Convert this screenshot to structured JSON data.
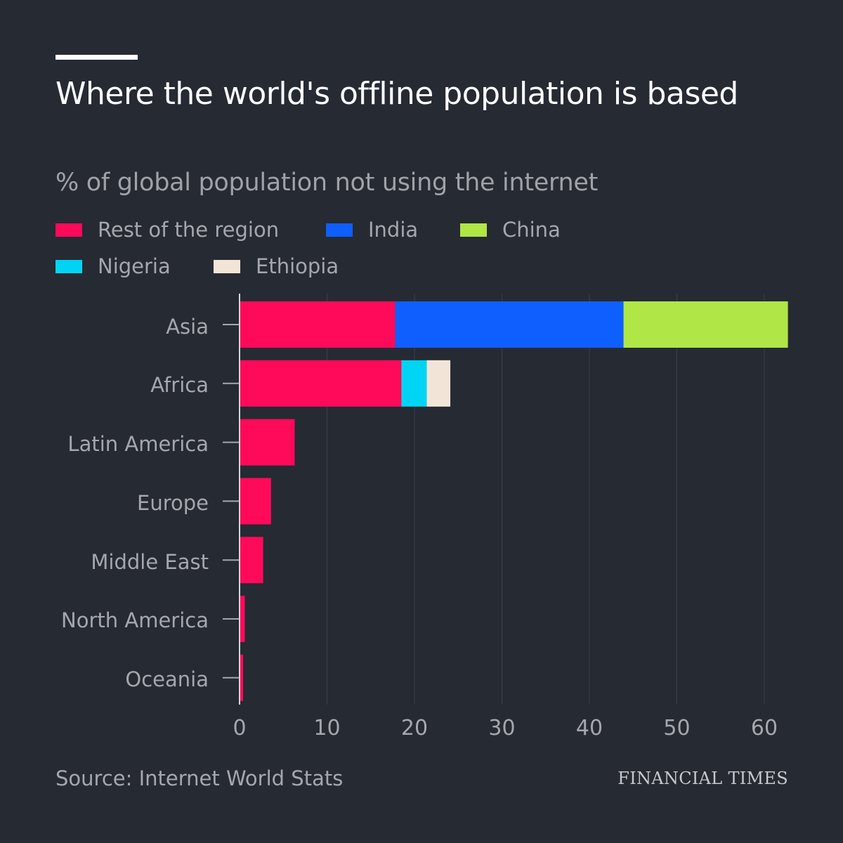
{
  "header": {
    "title": "Where the world's offline population is based",
    "subtitle": "% of global population not using the internet"
  },
  "footer": {
    "source": "Source: Internet World Stats",
    "brand": "FINANCIAL TIMES"
  },
  "colors": {
    "background": "#262a33",
    "rest_of_region": "#ff0a5a",
    "india": "#0f5fff",
    "china": "#b0e645",
    "nigeria": "#00d4f5",
    "ethiopia": "#f2e5d8"
  },
  "chart_data": {
    "type": "bar",
    "orientation": "horizontal",
    "stacked": true,
    "categories": [
      "Asia",
      "Africa",
      "Latin America",
      "Europe",
      "Middle East",
      "North America",
      "Oceania"
    ],
    "series": [
      {
        "name": "Rest of the region",
        "color": "#ff0a5a",
        "values": [
          17.8,
          18.5,
          6.3,
          3.6,
          2.7,
          0.6,
          0.4
        ]
      },
      {
        "name": "India",
        "color": "#0f5fff",
        "values": [
          26.1,
          0,
          0,
          0,
          0,
          0,
          0
        ]
      },
      {
        "name": "China",
        "color": "#b0e645",
        "values": [
          18.8,
          0,
          0,
          0,
          0,
          0,
          0
        ]
      },
      {
        "name": "Nigeria",
        "color": "#00d4f5",
        "values": [
          0,
          2.9,
          0,
          0,
          0,
          0,
          0
        ]
      },
      {
        "name": "Ethiopia",
        "color": "#f2e5d8",
        "values": [
          0,
          2.7,
          0,
          0,
          0,
          0,
          0
        ]
      }
    ],
    "x_ticks": [
      0,
      10,
      20,
      30,
      40,
      50,
      60
    ],
    "xlim": [
      0,
      63
    ],
    "grid": true,
    "legend_position": "top"
  }
}
